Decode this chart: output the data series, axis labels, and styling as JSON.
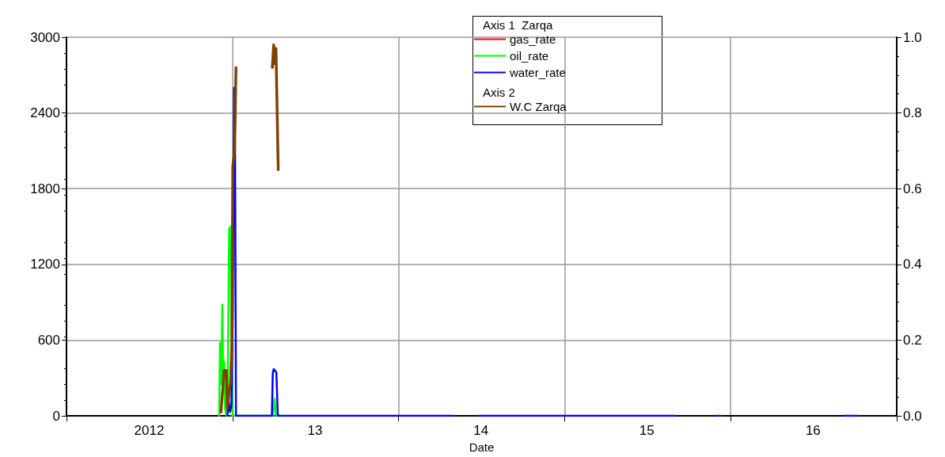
{
  "chart_data": {
    "type": "line",
    "xlabel": "Date",
    "legend_title": "Axis 1  Zarqa",
    "annotations": [
      "Axis 2"
    ],
    "legend": "top",
    "grid": true,
    "marker": "none",
    "xlim": [
      "2012-01-01",
      "2017-01-01"
    ],
    "xticks": [
      {
        "value": "2012-01-01",
        "label": null
      },
      {
        "value": "2012-07-01",
        "label": "2012"
      },
      {
        "value": "2013-01-01",
        "label": null
      },
      {
        "value": "2013-07-01",
        "label": "13"
      },
      {
        "value": "2014-01-01",
        "label": null
      },
      {
        "value": "2014-07-01",
        "label": "14"
      },
      {
        "value": "2015-01-01",
        "label": null
      },
      {
        "value": "2015-07-01",
        "label": "15"
      },
      {
        "value": "2016-01-01",
        "label": null
      },
      {
        "value": "2016-07-01",
        "label": "16"
      },
      {
        "value": "2017-01-01",
        "label": null
      }
    ],
    "ylim": [
      0,
      3000
    ],
    "yticks": [
      0,
      600,
      1200,
      1800,
      2400,
      3000
    ],
    "y2lim": [
      0,
      1
    ],
    "y2ticks": [
      {
        "value": 0,
        "label": "0.0"
      },
      0.2,
      0.4,
      0.6,
      0.8,
      {
        "value": 1,
        "label": "1.0"
      }
    ],
    "series": [
      {
        "name": "gas_rate",
        "color": "#ff0000",
        "x": [
          "2012-12-27",
          "2013-01-03"
        ],
        "values": [
          0,
          0
        ]
      },
      {
        "name": "oil_rate",
        "color": "#00ff00",
        "x": [
          "2012-12-02",
          "2012-12-04",
          "2012-12-07",
          "2012-12-09",
          "2012-12-11",
          "2012-12-13",
          "2012-12-15",
          "2012-12-18",
          "2012-12-21",
          "2012-12-24",
          "2012-12-27",
          "2012-12-29",
          "2013-01-01",
          "2013-03-30",
          "2013-04-03",
          "2013-04-06",
          "2013-04-14"
        ],
        "values": [
          0,
          580,
          250,
          880,
          200,
          430,
          60,
          0,
          300,
          1480,
          1500,
          600,
          0,
          0,
          135,
          0,
          0
        ]
      },
      {
        "name": "water_rate",
        "color": "#0000ff",
        "x": [
          "2012-12-20",
          "2012-12-23",
          "2012-12-26",
          "2012-12-29",
          "2013-01-01",
          "2013-01-04",
          "2013-01-06",
          "2013-01-08",
          "2013-03-28",
          "2013-03-30",
          "2013-04-01",
          "2013-04-04",
          "2013-04-07",
          "2013-04-10",
          "2014-05-01",
          "2014-06-01",
          "2014-06-27",
          "2015-09-02",
          "2015-10-01",
          "2015-11-30",
          "2015-12-10",
          "2016-06-01",
          "2016-09-06",
          "2016-10-09"
        ],
        "values": [
          0,
          120,
          30,
          80,
          840,
          2600,
          2080,
          0,
          0,
          340,
          370,
          360,
          340,
          0,
          0,
          null,
          0,
          0,
          null,
          0,
          0,
          null,
          0,
          0
        ]
      },
      {
        "name": "W.C Zarqa",
        "color": "#804000",
        "axis": "y2",
        "x": [
          "2012-12-06",
          "2012-12-13",
          "2012-12-18",
          "2012-12-20",
          "2012-12-27",
          "2012-12-30",
          "2013-01-01",
          "2013-01-05",
          "2013-01-08",
          "2013-02-15",
          "2013-03-29",
          "2013-04-01",
          "2013-04-03",
          "2013-04-06",
          "2013-04-11"
        ],
        "values": [
          0.01,
          0.12,
          0.12,
          0.02,
          0.09,
          0.19,
          0.66,
          0.7,
          0.92,
          null,
          0.92,
          0.98,
          0.93,
          0.97,
          0.65
        ]
      }
    ]
  }
}
